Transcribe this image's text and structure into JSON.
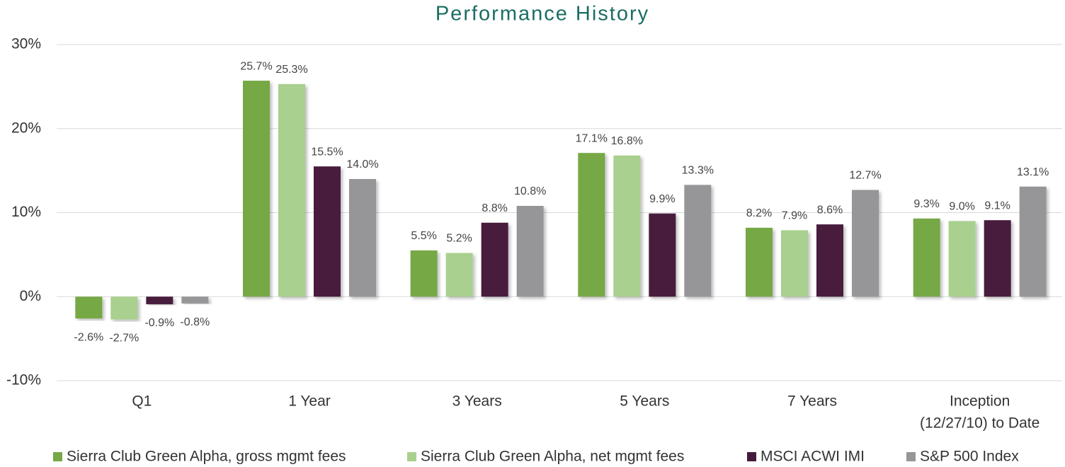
{
  "chart_data": {
    "type": "bar",
    "title": "Performance History",
    "categories": [
      "Q1",
      "1 Year",
      "3 Years",
      "5 Years",
      "7 Years",
      [
        "Inception",
        "(12/27/10) to Date"
      ]
    ],
    "series": [
      {
        "name": "Sierra Club Green Alpha, gross mgmt fees",
        "color": "#76a845",
        "values": [
          -2.6,
          25.7,
          5.5,
          17.1,
          8.2,
          9.3
        ],
        "value_labels": [
          "-2.6%",
          "25.7%",
          "5.5%",
          "17.1%",
          "8.2%",
          "9.3%"
        ]
      },
      {
        "name": "Sierra Club Green Alpha, net mgmt fees",
        "color": "#a9d08e",
        "values": [
          -2.7,
          25.3,
          5.2,
          16.8,
          7.9,
          9.0
        ],
        "value_labels": [
          "-2.7%",
          "25.3%",
          "5.2%",
          "16.8%",
          "7.9%",
          "9.0%"
        ]
      },
      {
        "name": "MSCI ACWI IMI",
        "color": "#461a3c",
        "values": [
          -0.9,
          15.5,
          8.8,
          9.9,
          8.6,
          9.1
        ],
        "value_labels": [
          "-0.9%",
          "15.5%",
          "8.8%",
          "9.9%",
          "8.6%",
          "9.1%"
        ]
      },
      {
        "name": "S&P 500 Index",
        "color": "#969698",
        "values": [
          -0.8,
          14.0,
          10.8,
          13.3,
          12.7,
          13.1
        ],
        "value_labels": [
          "-0.8%",
          "14.0%",
          "10.8%",
          "13.3%",
          "12.7%",
          "13.1%"
        ]
      }
    ],
    "ylim": [
      -10,
      30
    ],
    "yticks": [
      {
        "value": -10,
        "label": "-10%"
      },
      {
        "value": 0,
        "label": "0%"
      },
      {
        "value": 10,
        "label": "10%"
      },
      {
        "value": 20,
        "label": "20%"
      },
      {
        "value": 30,
        "label": "30%"
      }
    ],
    "grid": true,
    "legend": "bottom"
  }
}
